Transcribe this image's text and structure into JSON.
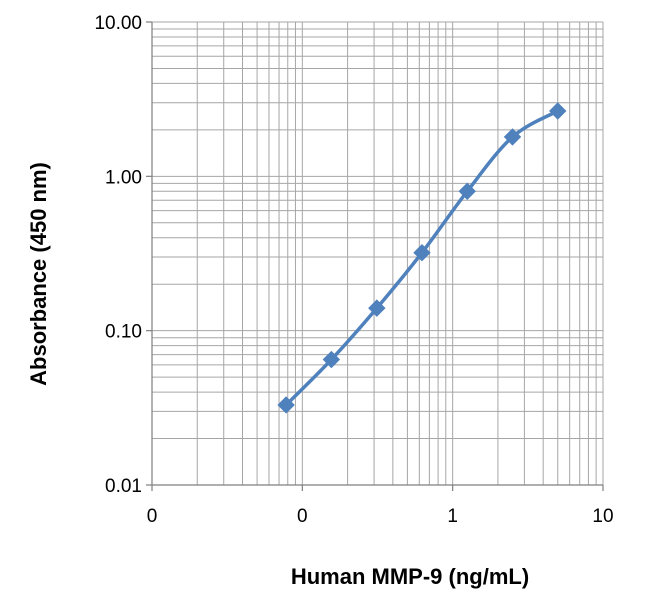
{
  "chart_data": {
    "type": "line",
    "title": "",
    "xlabel": "Human MMP-9 (ng/mL)",
    "ylabel": "Absorbance  (450 nm)",
    "x_scale": "log",
    "y_scale": "log",
    "xlim": [
      0.01,
      10
    ],
    "ylim": [
      0.01,
      10
    ],
    "x_tick_labels": [
      "0",
      "0",
      "1",
      "10"
    ],
    "y_tick_labels": [
      "0.01",
      "0.10",
      "1.00",
      "10.00"
    ],
    "grid": true,
    "legend": "none",
    "series": [
      {
        "marker": "diamond",
        "color": "#4f81bd",
        "x": [
          0.078,
          0.156,
          0.313,
          0.625,
          1.25,
          2.5,
          5.0
        ],
        "y": [
          0.033,
          0.065,
          0.14,
          0.32,
          0.8,
          1.8,
          2.65
        ]
      }
    ]
  }
}
